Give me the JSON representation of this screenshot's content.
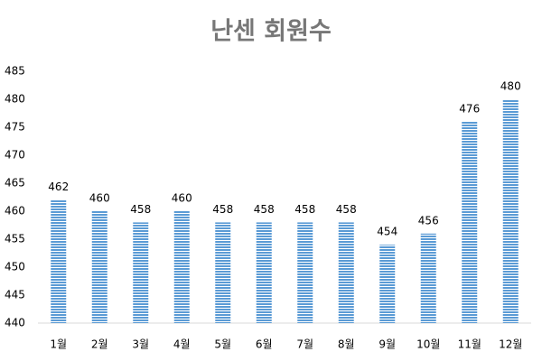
{
  "chart_data": {
    "type": "bar",
    "title": "난센 회원수",
    "categories": [
      "1월",
      "2월",
      "3월",
      "4월",
      "5월",
      "6월",
      "7월",
      "8월",
      "9월",
      "10월",
      "11월",
      "12월"
    ],
    "values": [
      462,
      460,
      458,
      460,
      458,
      458,
      458,
      458,
      454,
      456,
      476,
      480
    ],
    "color": "#5b9bd5",
    "ylim": [
      440,
      485
    ],
    "yticks": [
      440,
      445,
      450,
      455,
      460,
      465,
      470,
      475,
      480,
      485
    ],
    "grid": false
  }
}
